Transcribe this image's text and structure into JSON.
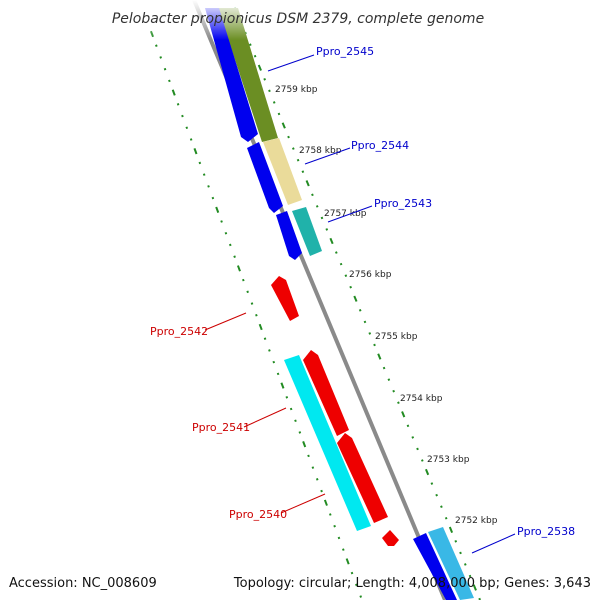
{
  "map": {
    "title": "Pelobacter propionicus DSM 2379, complete genome",
    "accession": "Accession: NC_008609",
    "topology": "Topology: circular; Length: 4,008,000 bp; Genes: 3,643"
  },
  "kbp_labels": [
    "2759 kbp",
    "2758 kbp",
    "2757 kbp",
    "2756 kbp",
    "2755 kbp",
    "2754 kbp",
    "2753 kbp",
    "2752 kbp"
  ],
  "genes": [
    {
      "label": "Ppro_2545",
      "color": "#0000cc"
    },
    {
      "label": "Ppro_2544",
      "color": "#0000cc"
    },
    {
      "label": "Ppro_2543",
      "color": "#0000cc"
    },
    {
      "label": "Ppro_2542",
      "color": "#cc0000"
    },
    {
      "label": "Ppro_2541",
      "color": "#cc0000"
    },
    {
      "label": "Ppro_2540",
      "color": "#cc0000"
    },
    {
      "label": "Ppro_2538",
      "color": "#0000cc"
    }
  ],
  "colors": {
    "backbone": "#888888",
    "forward_cds": "#0000ee",
    "reverse_cds": "#ee0000",
    "cog_olive": "#6b8e23",
    "cog_beige": "#e8d894",
    "cog_teal": "#20b2aa",
    "cog_cyan": "#00e5ee",
    "tick_green": "#228b22"
  }
}
